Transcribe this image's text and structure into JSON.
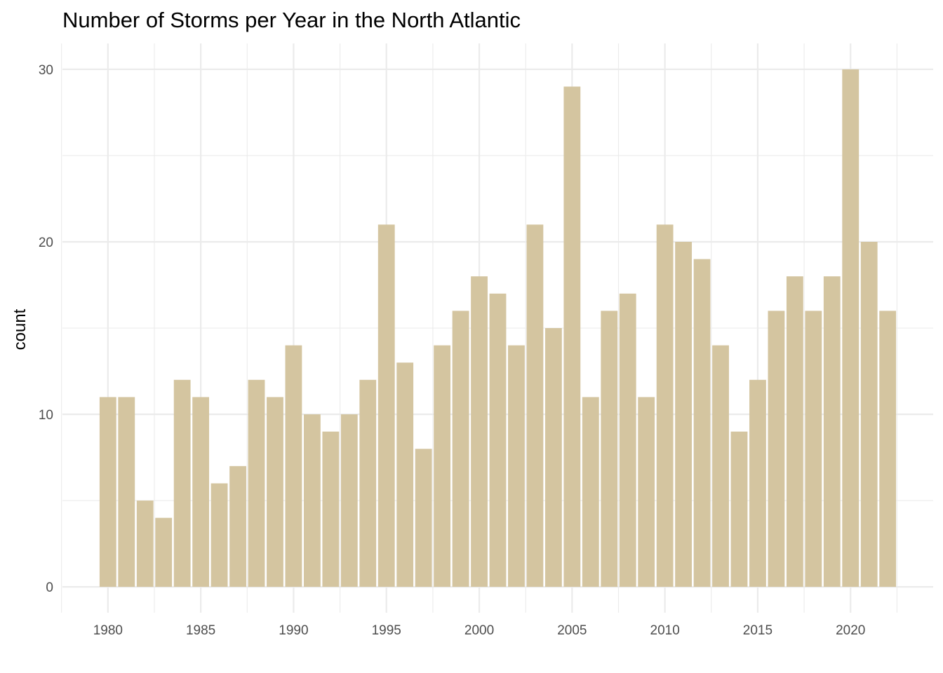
{
  "chart_data": {
    "type": "bar",
    "title": "Number of Storms per Year in the North Atlantic",
    "xlabel": "",
    "ylabel": "count",
    "x": [
      1980,
      1981,
      1982,
      1983,
      1984,
      1985,
      1986,
      1987,
      1988,
      1989,
      1990,
      1991,
      1992,
      1993,
      1994,
      1995,
      1996,
      1997,
      1998,
      1999,
      2000,
      2001,
      2002,
      2003,
      2004,
      2005,
      2006,
      2007,
      2008,
      2009,
      2010,
      2011,
      2012,
      2013,
      2014,
      2015,
      2016,
      2017,
      2018,
      2019,
      2020,
      2021,
      2022
    ],
    "values": [
      11,
      11,
      5,
      4,
      12,
      11,
      6,
      7,
      12,
      11,
      14,
      10,
      9,
      10,
      12,
      21,
      13,
      8,
      14,
      16,
      18,
      17,
      14,
      21,
      15,
      29,
      11,
      16,
      17,
      11,
      21,
      20,
      19,
      14,
      9,
      12,
      16,
      18,
      16,
      18,
      30,
      20,
      16
    ],
    "xlim": [
      1977.6,
      1924.4
    ],
    "ylim": [
      -1.5,
      31.5
    ],
    "x_ticks": [
      "1980",
      "1985",
      "1990",
      "1995",
      "2000",
      "2005",
      "2010",
      "2015",
      "2020"
    ],
    "y_ticks": [
      "0",
      "10",
      "20",
      "30"
    ],
    "bar_color": "#d4c5a0",
    "grid": true,
    "legend": "none"
  }
}
